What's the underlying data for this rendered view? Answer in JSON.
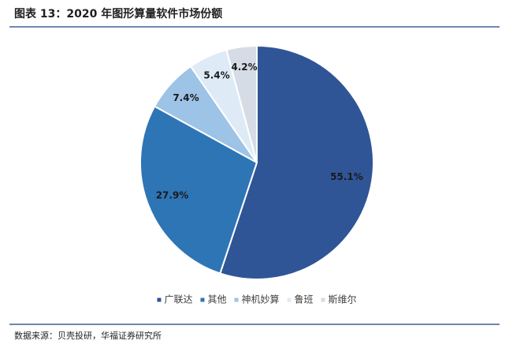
{
  "chart_data": {
    "type": "pie",
    "title": "图表 13：2020 年图形算量软件市场份额",
    "source": "数据来源：贝壳投研，华福证券研究所",
    "categories": [
      "广联达",
      "其他",
      "神机妙算",
      "鲁班",
      "斯维尔"
    ],
    "values": [
      55.1,
      27.9,
      7.4,
      5.4,
      4.2
    ],
    "value_labels": [
      "55.1%",
      "27.9%",
      "7.4%",
      "5.4%",
      "4.2%"
    ],
    "colors": [
      "#2f5597",
      "#2e75b6",
      "#9dc3e6",
      "#deebf7",
      "#d6dce5"
    ],
    "legend": "bottom"
  }
}
